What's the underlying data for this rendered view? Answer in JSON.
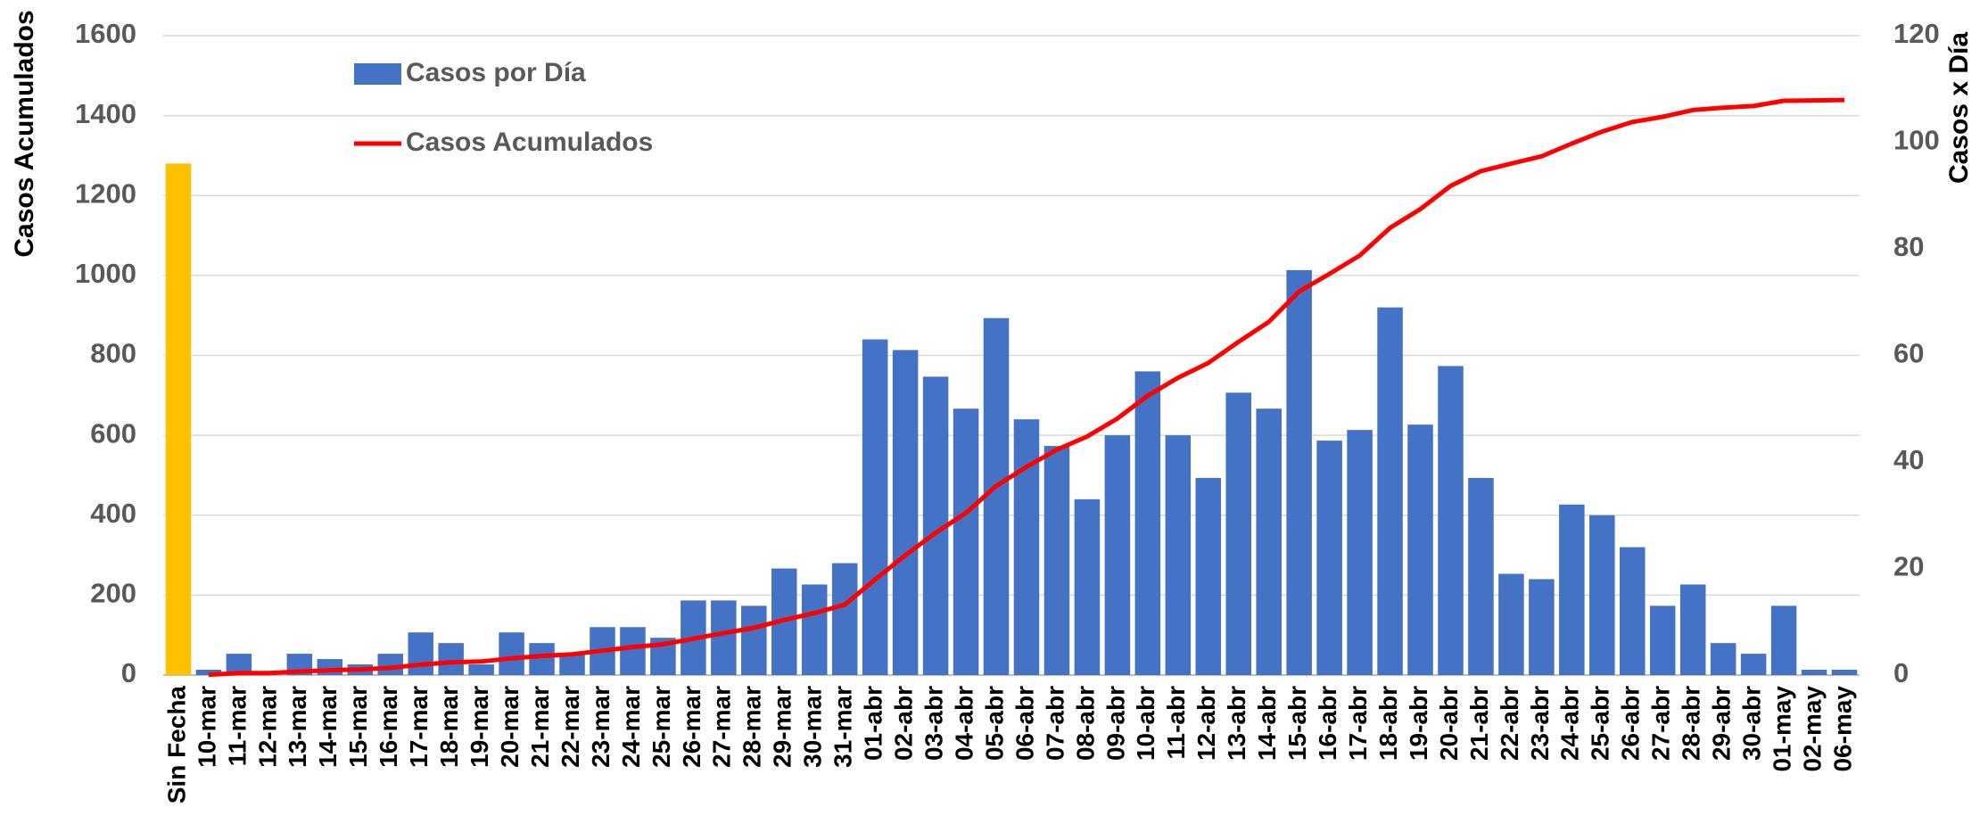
{
  "chart_data": {
    "type": "bar-line",
    "y_label": "Casos Acumulados",
    "y2_label": "Casos x Día",
    "categories": [
      "Sin Fecha",
      "10-mar",
      "11-mar",
      "12-mar",
      "13-mar",
      "14-mar",
      "15-mar",
      "16-mar",
      "17-mar",
      "18-mar",
      "19-mar",
      "20-mar",
      "21-mar",
      "22-mar",
      "23-mar",
      "24-mar",
      "25-mar",
      "26-mar",
      "27-mar",
      "28-mar",
      "29-mar",
      "30-mar",
      "31-mar",
      "01-abr",
      "02-abr",
      "03-abr",
      "04-abr",
      "05-abr",
      "06-abr",
      "07-abr",
      "08-abr",
      "09-abr",
      "10-abr",
      "11-abr",
      "12-abr",
      "13-abr",
      "14-abr",
      "15-abr",
      "16-abr",
      "17-abr",
      "18-abr",
      "19-abr",
      "20-abr",
      "21-abr",
      "22-abr",
      "23-abr",
      "24-abr",
      "25-abr",
      "26-abr",
      "27-abr",
      "28-abr",
      "29-abr",
      "30-abr",
      "01-may",
      "02-may",
      "06-may"
    ],
    "series": [
      {
        "name": "Casos por Día",
        "type": "bar",
        "axis": "y2",
        "color": "#4472c4",
        "colors": [
          "#ffc000",
          "#4472c4",
          "#4472c4",
          "#4472c4",
          "#4472c4",
          "#4472c4",
          "#4472c4",
          "#4472c4",
          "#4472c4",
          "#4472c4",
          "#4472c4",
          "#4472c4",
          "#4472c4",
          "#4472c4",
          "#4472c4",
          "#4472c4",
          "#4472c4",
          "#4472c4",
          "#4472c4",
          "#4472c4",
          "#4472c4",
          "#4472c4",
          "#4472c4",
          "#4472c4",
          "#4472c4",
          "#4472c4",
          "#4472c4",
          "#4472c4",
          "#4472c4",
          "#4472c4",
          "#4472c4",
          "#4472c4",
          "#4472c4",
          "#4472c4",
          "#4472c4",
          "#4472c4",
          "#4472c4",
          "#4472c4",
          "#4472c4",
          "#4472c4",
          "#4472c4",
          "#4472c4",
          "#4472c4",
          "#4472c4",
          "#4472c4",
          "#4472c4",
          "#4472c4",
          "#4472c4",
          "#4472c4",
          "#4472c4",
          "#4472c4",
          "#4472c4",
          "#4472c4",
          "#4472c4",
          "#4472c4",
          "#4472c4"
        ],
        "values": [
          96,
          1,
          4,
          0,
          4,
          3,
          2,
          4,
          8,
          6,
          2,
          8,
          6,
          4,
          9,
          9,
          7,
          14,
          14,
          13,
          20,
          17,
          21,
          63,
          61,
          56,
          50,
          67,
          48,
          43,
          33,
          45,
          57,
          45,
          37,
          53,
          50,
          76,
          44,
          46,
          69,
          47,
          58,
          37,
          19,
          18,
          32,
          30,
          24,
          13,
          17,
          6,
          4,
          13,
          1,
          1
        ]
      },
      {
        "name": "Casos Acumulados",
        "type": "line",
        "color": "#ff0000",
        "values": [
          null,
          1,
          5,
          5,
          9,
          12,
          14,
          18,
          26,
          32,
          34,
          42,
          48,
          52,
          61,
          70,
          77,
          91,
          105,
          118,
          138,
          155,
          176,
          239,
          300,
          356,
          406,
          473,
          521,
          564,
          597,
          642,
          699,
          744,
          781,
          834,
          884,
          960,
          1004,
          1050,
          1119,
          1166,
          1224,
          1261,
          1280,
          1298,
          1330,
          1360,
          1384,
          1397,
          1414,
          1420,
          1424,
          1437,
          1438,
          1439
        ]
      }
    ],
    "ylim": [
      0,
      1600
    ],
    "yticks": [
      0,
      200,
      400,
      600,
      800,
      1000,
      1200,
      1400,
      1600
    ],
    "y2lim": [
      0,
      120
    ],
    "y2ticks": [
      0,
      20,
      40,
      60,
      80,
      100,
      120
    ],
    "grid": true
  }
}
